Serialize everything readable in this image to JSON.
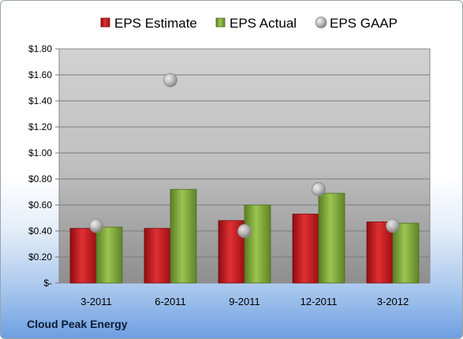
{
  "chart_data": {
    "type": "bar",
    "title": "",
    "xlabel": "",
    "ylabel": "",
    "categories": [
      "3-2011",
      "6-2011",
      "9-2011",
      "12-2011",
      "3-2012"
    ],
    "series": [
      {
        "name": "EPS Estimate",
        "kind": "bar",
        "color": "#c8191c",
        "values": [
          0.42,
          0.42,
          0.48,
          0.53,
          0.47
        ]
      },
      {
        "name": "EPS Actual",
        "kind": "bar",
        "color": "#7ea63a",
        "values": [
          0.43,
          0.72,
          0.6,
          0.69,
          0.46
        ]
      },
      {
        "name": "EPS GAAP",
        "kind": "scatter",
        "color": "#a8a8a8",
        "values": [
          0.44,
          1.56,
          0.4,
          0.72,
          0.44
        ]
      }
    ],
    "ylim": [
      0,
      1.8
    ],
    "yticks": [
      0,
      0.2,
      0.4,
      0.6,
      0.8,
      1.0,
      1.2,
      1.4,
      1.6,
      1.8
    ],
    "ytick_labels": [
      "$-",
      "$0.20",
      "$0.40",
      "$0.60",
      "$0.80",
      "$1.00",
      "$1.20",
      "$1.40",
      "$1.60",
      "$1.80"
    ],
    "grid": true,
    "legend_position": "top"
  },
  "footer": {
    "company": "Cloud Peak Energy"
  }
}
